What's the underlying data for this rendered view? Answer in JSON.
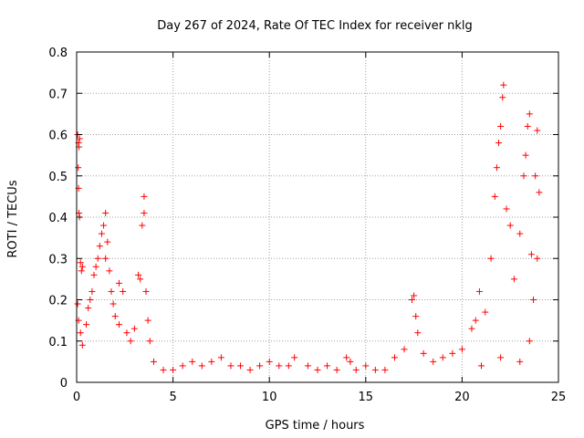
{
  "chart_data": {
    "type": "scatter",
    "title": "Day 267 of 2024, Rate Of TEC Index for receiver nklg",
    "xlabel": "GPS time / hours",
    "ylabel": "ROTI / TECUs",
    "xlim": [
      0,
      25
    ],
    "ylim": [
      0,
      0.8
    ],
    "x_ticks": [
      0,
      5,
      10,
      15,
      20,
      25
    ],
    "y_ticks": [
      0,
      0.1,
      0.2,
      0.3,
      0.4,
      0.5,
      0.6,
      0.7,
      0.8
    ],
    "x_tick_labels": [
      "0",
      "5",
      "10",
      "15",
      "20",
      "25"
    ],
    "y_tick_labels": [
      "0",
      "0.1",
      "0.2",
      "0.3",
      "0.4",
      "0.5",
      "0.6",
      "0.7",
      "0.8"
    ],
    "grid": true,
    "marker": "+",
    "series": [
      {
        "color": "#ff0000",
        "points": [
          [
            0.05,
            0.6
          ],
          [
            0.1,
            0.58
          ],
          [
            0.12,
            0.57
          ],
          [
            0.15,
            0.59
          ],
          [
            0.08,
            0.52
          ],
          [
            0.1,
            0.47
          ],
          [
            0.12,
            0.41
          ],
          [
            0.15,
            0.4
          ],
          [
            0.2,
            0.29
          ],
          [
            0.3,
            0.28
          ],
          [
            0.25,
            0.27
          ],
          [
            0.05,
            0.19
          ],
          [
            0.1,
            0.15
          ],
          [
            0.2,
            0.12
          ],
          [
            0.3,
            0.09
          ],
          [
            0.5,
            0.14
          ],
          [
            0.6,
            0.18
          ],
          [
            0.7,
            0.2
          ],
          [
            0.8,
            0.22
          ],
          [
            0.9,
            0.26
          ],
          [
            1.0,
            0.28
          ],
          [
            1.1,
            0.3
          ],
          [
            1.2,
            0.33
          ],
          [
            1.3,
            0.36
          ],
          [
            1.4,
            0.38
          ],
          [
            1.5,
            0.41
          ],
          [
            1.6,
            0.34
          ],
          [
            1.5,
            0.3
          ],
          [
            1.7,
            0.27
          ],
          [
            1.8,
            0.22
          ],
          [
            1.9,
            0.19
          ],
          [
            2.0,
            0.16
          ],
          [
            2.2,
            0.14
          ],
          [
            2.4,
            0.22
          ],
          [
            2.2,
            0.24
          ],
          [
            2.6,
            0.12
          ],
          [
            2.8,
            0.1
          ],
          [
            3.0,
            0.13
          ],
          [
            3.2,
            0.26
          ],
          [
            3.3,
            0.25
          ],
          [
            3.4,
            0.38
          ],
          [
            3.5,
            0.41
          ],
          [
            3.5,
            0.45
          ],
          [
            3.6,
            0.22
          ],
          [
            3.7,
            0.15
          ],
          [
            3.8,
            0.1
          ],
          [
            4.0,
            0.05
          ],
          [
            4.5,
            0.03
          ],
          [
            5.0,
            0.03
          ],
          [
            5.5,
            0.04
          ],
          [
            6.0,
            0.05
          ],
          [
            6.5,
            0.04
          ],
          [
            7.0,
            0.05
          ],
          [
            7.5,
            0.06
          ],
          [
            8.0,
            0.04
          ],
          [
            8.5,
            0.04
          ],
          [
            9.0,
            0.03
          ],
          [
            9.5,
            0.04
          ],
          [
            10.0,
            0.05
          ],
          [
            10.5,
            0.04
          ],
          [
            11.0,
            0.04
          ],
          [
            11.3,
            0.06
          ],
          [
            12.0,
            0.04
          ],
          [
            12.5,
            0.03
          ],
          [
            13.0,
            0.04
          ],
          [
            13.5,
            0.03
          ],
          [
            14.0,
            0.06
          ],
          [
            14.2,
            0.05
          ],
          [
            14.5,
            0.03
          ],
          [
            15.0,
            0.04
          ],
          [
            15.5,
            0.03
          ],
          [
            16.0,
            0.03
          ],
          [
            16.5,
            0.06
          ],
          [
            17.0,
            0.08
          ],
          [
            17.4,
            0.2
          ],
          [
            17.5,
            0.21
          ],
          [
            17.6,
            0.16
          ],
          [
            17.7,
            0.12
          ],
          [
            18.0,
            0.07
          ],
          [
            18.5,
            0.05
          ],
          [
            19.0,
            0.06
          ],
          [
            19.5,
            0.07
          ],
          [
            20.0,
            0.08
          ],
          [
            20.5,
            0.13
          ],
          [
            20.7,
            0.15
          ],
          [
            20.9,
            0.22
          ],
          [
            21.2,
            0.17
          ],
          [
            21.5,
            0.3
          ],
          [
            21.7,
            0.45
          ],
          [
            21.8,
            0.52
          ],
          [
            21.9,
            0.58
          ],
          [
            22.0,
            0.62
          ],
          [
            22.1,
            0.69
          ],
          [
            22.15,
            0.72
          ],
          [
            22.3,
            0.42
          ],
          [
            22.5,
            0.38
          ],
          [
            22.7,
            0.25
          ],
          [
            23.0,
            0.36
          ],
          [
            23.2,
            0.5
          ],
          [
            23.3,
            0.55
          ],
          [
            23.4,
            0.62
          ],
          [
            23.5,
            0.65
          ],
          [
            23.6,
            0.31
          ],
          [
            23.8,
            0.5
          ],
          [
            23.9,
            0.61
          ],
          [
            24.0,
            0.46
          ],
          [
            23.9,
            0.3
          ],
          [
            23.7,
            0.2
          ],
          [
            23.5,
            0.1
          ],
          [
            23.0,
            0.05
          ],
          [
            22.0,
            0.06
          ],
          [
            21.0,
            0.04
          ]
        ]
      }
    ]
  }
}
